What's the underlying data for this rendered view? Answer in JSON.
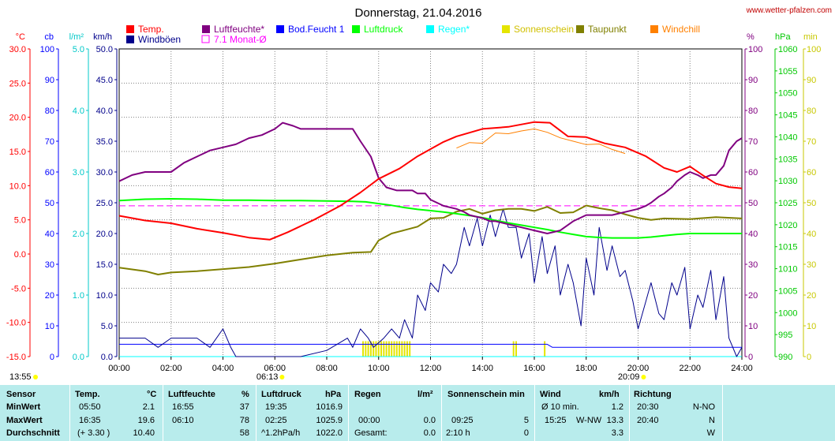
{
  "title": "Donnerstag, 21.04.2016",
  "site": "www.wetter-pfalzen.com",
  "legend": [
    {
      "label": "Temp.",
      "color": "#ff0000",
      "box": "filled"
    },
    {
      "label": "Windböen",
      "color": "#00008b",
      "box": "filled"
    },
    {
      "label": "Luftfeuchte*",
      "color": "#800080",
      "box": "filled"
    },
    {
      "label": "7.1 Monat-Ø",
      "color": "#ff00ff",
      "box": "outline"
    },
    {
      "label": "Bod.Feucht 1",
      "color": "#0000ff",
      "box": "filled"
    },
    {
      "label": "Luftdruck",
      "color": "#00ff00",
      "box": "filled"
    },
    {
      "label": "Regen*",
      "color": "#00ffff",
      "box": "filled"
    },
    {
      "label": "Sonnenschein",
      "color": "#e5e500",
      "box": "filled"
    },
    {
      "label": "Taupunkt",
      "color": "#808000",
      "box": "filled"
    },
    {
      "label": "Windchill",
      "color": "#ff8000",
      "box": "filled"
    }
  ],
  "axes_left": [
    {
      "unit": "°C",
      "color": "#ff0000",
      "ticks": [
        "30.0",
        "25.0",
        "20.0",
        "15.0",
        "10.0",
        "5.0",
        "0.0",
        "-5.0",
        "-10.0",
        "-15.0"
      ]
    },
    {
      "unit": "cb",
      "color": "#0000ff",
      "ticks": [
        "100",
        "90",
        "80",
        "70",
        "60",
        "50",
        "40",
        "30",
        "20",
        "10",
        "0"
      ]
    },
    {
      "unit": "l/m²",
      "color": "#00c8c8",
      "ticks": [
        "5.0",
        "4.0",
        "3.0",
        "2.0",
        "1.0",
        "0.0"
      ]
    },
    {
      "unit": "km/h",
      "color": "#00008b",
      "ticks": [
        "50.0",
        "45.0",
        "40.0",
        "35.0",
        "30.0",
        "25.0",
        "20.0",
        "15.0",
        "10.0",
        "5.0",
        "0.0"
      ]
    }
  ],
  "axes_right": [
    {
      "unit": "%",
      "color": "#800080",
      "ticks": [
        "100",
        "90",
        "80",
        "70",
        "60",
        "50",
        "40",
        "30",
        "20",
        "10",
        "0"
      ]
    },
    {
      "unit": "hPa",
      "color": "#00c800",
      "ticks": [
        "1060",
        "1055",
        "1050",
        "1045",
        "1040",
        "1035",
        "1030",
        "1025",
        "1020",
        "1015",
        "1010",
        "1005",
        "1000",
        "995",
        "990"
      ]
    },
    {
      "unit": "min",
      "color": "#c8c800",
      "ticks": [
        "100",
        "90",
        "80",
        "70",
        "60",
        "50",
        "40",
        "30",
        "20",
        "10",
        "0"
      ]
    }
  ],
  "x_ticks": [
    "00:00",
    "02:00",
    "04:00",
    "06:00",
    "08:00",
    "10:00",
    "12:00",
    "14:00",
    "16:00",
    "18:00",
    "20:00",
    "22:00",
    "24:00"
  ],
  "sun_times": {
    "sunrise": "06:13",
    "sunset": "20:09",
    "left_mark": "13:55"
  },
  "chart_data": {
    "type": "line",
    "title": "Donnerstag, 21.04.2016",
    "xlim": [
      0,
      24
    ],
    "series": [
      {
        "name": "Temp.",
        "unit": "°C",
        "ylim": [
          -15,
          30
        ],
        "color": "#ff0000",
        "x": [
          0,
          1,
          2,
          3,
          4,
          5,
          5.8,
          6.5,
          7.5,
          8.5,
          9.3,
          10,
          10.8,
          11.5,
          12.5,
          13,
          14,
          15,
          16,
          16.6,
          17.3,
          18,
          18.7,
          19.5,
          20.3,
          21,
          21.5,
          22,
          22.5,
          23,
          23.5,
          24
        ],
        "y": [
          5.6,
          4.9,
          4.5,
          3.7,
          3.1,
          2.4,
          2.1,
          3.2,
          5.0,
          7.0,
          9.0,
          11.0,
          12.5,
          14.3,
          16.4,
          17.2,
          18.3,
          18.6,
          19.3,
          19.2,
          17.2,
          17.1,
          16.2,
          15.6,
          14.3,
          12.6,
          12.0,
          12.8,
          11.5,
          10.3,
          9.8,
          9.6
        ]
      },
      {
        "name": "Windchill",
        "unit": "°C",
        "ylim": [
          -15,
          30
        ],
        "color": "#ff8000",
        "x": [
          13,
          13.5,
          14,
          14.5,
          15,
          15.5,
          16,
          16.5,
          17,
          17.5,
          18,
          18.5,
          19,
          19.5
        ],
        "y": [
          15.5,
          16.3,
          16.2,
          17.7,
          17.6,
          18.0,
          18.3,
          17.8,
          17.0,
          16.5,
          16.0,
          16.1,
          15.3,
          14.7
        ]
      },
      {
        "name": "Windböen",
        "unit": "km/h",
        "ylim": [
          0,
          50
        ],
        "color": "#00008b",
        "x": [
          0,
          1,
          1.5,
          2,
          3,
          3.5,
          4,
          4.3,
          4.5,
          5,
          6,
          7,
          8,
          8.8,
          9,
          9.3,
          9.6,
          9.8,
          10.2,
          10.5,
          10.8,
          11,
          11.3,
          11.5,
          11.8,
          12,
          12.3,
          12.5,
          12.8,
          13,
          13.3,
          13.5,
          13.8,
          14,
          14.3,
          14.5,
          14.8,
          15,
          15.3,
          15.5,
          15.8,
          16,
          16.3,
          16.5,
          16.8,
          17,
          17.3,
          17.5,
          17.8,
          18,
          18.3,
          18.5,
          18.8,
          19,
          19.3,
          19.5,
          19.8,
          20,
          20.3,
          20.5,
          20.8,
          21,
          21.3,
          21.5,
          21.8,
          22,
          22.3,
          22.5,
          22.8,
          23,
          23.3,
          23.5,
          23.8,
          24
        ],
        "y": [
          3,
          3,
          1.5,
          3,
          3,
          1.5,
          4.5,
          1.5,
          0,
          0,
          0,
          0,
          1,
          3,
          1.5,
          4.5,
          3,
          1.5,
          3,
          4.5,
          3,
          6,
          3,
          10,
          7.5,
          12,
          10.5,
          15,
          13.5,
          15,
          21,
          18,
          22.5,
          18,
          23,
          19.5,
          24,
          21,
          21,
          16,
          20,
          12,
          19.5,
          13.5,
          18,
          10,
          15,
          12,
          5,
          16,
          10,
          21,
          14,
          18,
          13,
          14,
          9,
          4.5,
          9,
          12,
          7,
          6,
          12,
          10,
          14.5,
          4.5,
          10,
          8,
          14,
          6,
          13,
          3,
          0,
          1.5
        ]
      },
      {
        "name": "Luftfeuchte*",
        "unit": "%",
        "ylim": [
          0,
          100
        ],
        "color": "#800080",
        "x": [
          0,
          0.5,
          1,
          1.5,
          2,
          2.5,
          3,
          3.5,
          4,
          4.5,
          5,
          5.5,
          6,
          6.3,
          6.7,
          7,
          7.5,
          8,
          8.5,
          9,
          9.3,
          9.7,
          10,
          10.3,
          10.7,
          11,
          11.3,
          11.5,
          11.8,
          12,
          12.5,
          13,
          13.3,
          13.5,
          14,
          14.3,
          14.5,
          15,
          15.5,
          16,
          16.5,
          17,
          17.5,
          18,
          18.5,
          19,
          19.5,
          20,
          20.3,
          20.5,
          20.8,
          21,
          21.3,
          21.5,
          21.8,
          22,
          22.3,
          22.5,
          22.8,
          23,
          23.3,
          23.5,
          23.8,
          24
        ],
        "y": [
          57,
          59,
          60,
          60,
          60,
          63,
          65,
          67,
          68,
          69,
          71,
          72,
          74,
          76,
          75,
          74,
          74,
          74,
          74,
          74,
          70,
          65,
          58,
          55,
          54,
          54,
          54,
          53,
          53,
          51,
          49,
          48,
          47,
          46,
          45,
          44,
          44,
          43,
          42,
          41,
          40,
          41,
          44,
          46,
          46,
          46,
          47,
          48,
          49,
          50,
          52,
          53,
          55,
          57,
          59,
          60,
          59,
          58,
          59,
          59,
          62,
          67,
          70,
          71
        ]
      },
      {
        "name": "Taupunkt",
        "unit": "°C",
        "ylim": [
          -15,
          30
        ],
        "color": "#808000",
        "x": [
          0,
          1,
          1.5,
          2,
          3,
          4,
          5,
          6,
          7,
          8,
          9,
          9.7,
          10,
          10.5,
          11,
          11.5,
          12,
          12.5,
          13,
          13.5,
          14,
          14.5,
          15,
          15.5,
          16,
          16.5,
          17,
          17.5,
          18,
          18.5,
          19,
          19.5,
          20,
          20.5,
          21,
          22,
          23,
          24
        ],
        "y": [
          -2.0,
          -2.5,
          -3.0,
          -2.7,
          -2.5,
          -2.2,
          -1.9,
          -1.4,
          -0.8,
          -0.2,
          0.2,
          0.3,
          2.0,
          3.0,
          3.5,
          4.0,
          5.2,
          5.3,
          6.2,
          6.6,
          5.9,
          6.4,
          6.6,
          6.6,
          6.3,
          6.9,
          6.0,
          6.1,
          7.1,
          6.7,
          6.4,
          5.8,
          5.3,
          5.0,
          5.2,
          5.1,
          5.4,
          5.2
        ]
      },
      {
        "name": "Luftdruck",
        "unit": "hPa",
        "ylim": [
          990,
          1060
        ],
        "color": "#00ff00",
        "x": [
          0,
          1,
          2,
          3,
          4,
          5,
          6,
          7,
          8,
          9,
          9.5,
          10,
          10.5,
          11,
          11.5,
          12,
          12.5,
          13,
          13.5,
          14,
          14.5,
          15,
          15.5,
          16,
          16.5,
          17,
          17.5,
          18,
          18.5,
          19,
          19.5,
          20,
          20.5,
          21,
          21.5,
          22,
          23,
          24
        ],
        "y": [
          1025.5,
          1025.8,
          1025.9,
          1025.8,
          1025.6,
          1025.6,
          1025.5,
          1025.5,
          1025.4,
          1025.3,
          1025.2,
          1024.8,
          1024.4,
          1023.9,
          1023.5,
          1023.2,
          1022.9,
          1022.5,
          1022.1,
          1021.6,
          1021.0,
          1020.4,
          1019.9,
          1019.4,
          1018.9,
          1018.3,
          1017.8,
          1017.3,
          1017.1,
          1017.0,
          1017.0,
          1017.0,
          1017.2,
          1017.5,
          1017.8,
          1018.0,
          1018.0,
          1018.0
        ]
      },
      {
        "name": "7.1 Monat-Ø",
        "unit": "%",
        "ylim": [
          0,
          100
        ],
        "color": "#ff00ff",
        "style": "dashed",
        "x": [
          0,
          24
        ],
        "y": [
          49,
          49
        ]
      },
      {
        "name": "Bod.Feucht 1",
        "unit": "cb",
        "ylim": [
          0,
          100
        ],
        "color": "#0000ff",
        "x": [
          0,
          16.5,
          16.7,
          24
        ],
        "y": [
          4,
          4,
          3,
          3
        ]
      },
      {
        "name": "Regen*",
        "unit": "l/m²",
        "ylim": [
          0,
          5
        ],
        "color": "#00ffff",
        "x": [
          0,
          24
        ],
        "y": [
          0,
          0
        ]
      },
      {
        "name": "Sonnenschein",
        "unit": "min",
        "ylim": [
          0,
          100
        ],
        "color": "#e5e500",
        "type": "bar",
        "x": [
          9.4,
          9.5,
          9.6,
          9.7,
          9.8,
          9.9,
          10.0,
          10.1,
          10.2,
          10.3,
          10.4,
          10.5,
          10.6,
          10.7,
          10.8,
          10.9,
          11.0,
          11.1,
          11.2,
          15.2,
          15.3,
          16.4
        ],
        "y": [
          5,
          5,
          5,
          5,
          5,
          5,
          5,
          5,
          5,
          5,
          5,
          5,
          5,
          5,
          5,
          5,
          5,
          5,
          5,
          5,
          5,
          5
        ]
      }
    ]
  },
  "stats": {
    "header": {
      "sensor": "Sensor",
      "temp": "Temp.",
      "temp_unit": "°C",
      "hum": "Luftfeuchte",
      "hum_unit": "%",
      "press": "Luftdruck",
      "press_unit": "hPa",
      "rain": "Regen",
      "rain_unit": "l/m²",
      "sun": "Sonnenschein min",
      "wind": "Wind",
      "wind_unit": "km/h",
      "dir": "Richtung"
    },
    "min": {
      "label": "MinWert",
      "temp_time": "05:50",
      "temp_val": "2.1",
      "hum_time": "16:55",
      "hum_val": "37",
      "press_time": "19:35",
      "press_val": "1016.9",
      "wind_time": "Ø 10 min.",
      "wind_val": "1.2",
      "dir_time": "20:30",
      "dir_val": "N-NO"
    },
    "max": {
      "label": "MaxWert",
      "temp_time": "16:35",
      "temp_val": "19.6",
      "hum_time": "06:10",
      "hum_val": "78",
      "press_time": "02:25",
      "press_val": "1025.9",
      "rain_time": "00:00",
      "rain_val": "0.0",
      "sun_time": "09:25",
      "sun_val": "5",
      "wind_time": "15:25",
      "wind_dir": "W-NW",
      "wind_val": "13.3",
      "dir_time": "20:40",
      "dir_val": "N"
    },
    "avg": {
      "label": "Durchschnitt",
      "temp_time": "(+ 3.30 )",
      "temp_val": "10.40",
      "hum_val": "58",
      "press_trend": "^1.2hPa/h",
      "press_val": "1022.0",
      "rain_label": "Gesamt:",
      "rain_val": "0.0",
      "sun_time": "2:10 h",
      "sun_val": "0",
      "wind_val": "3.3",
      "dir_val": "W"
    }
  }
}
